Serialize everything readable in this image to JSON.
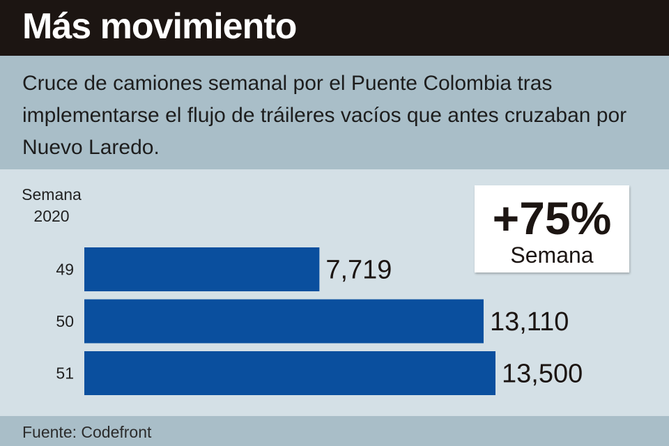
{
  "header": {
    "title": "Más movimiento"
  },
  "subtitle": "Cruce de camiones semanal por el Puente Colombia tras implementarse el flujo de tráileres vacíos que antes cruzaban por Nuevo Laredo.",
  "source": "Fuente: Codefront",
  "callout": {
    "value": "+75%",
    "label": "Semana"
  },
  "colors": {
    "bar": "#0a4f9e",
    "header_bg": "#1c1512",
    "band_bg": "#a9bec8",
    "chart_bg": "#d4e0e6"
  },
  "chart_data": {
    "type": "bar",
    "orientation": "horizontal",
    "axis_title": [
      "Semana",
      "2020"
    ],
    "categories": [
      "49",
      "50",
      "51"
    ],
    "values": [
      7719,
      13110,
      13500
    ],
    "value_labels": [
      "7,719",
      "13,110",
      "13,500"
    ],
    "xlim": [
      0,
      13500
    ],
    "grid": false,
    "legend": "none"
  }
}
